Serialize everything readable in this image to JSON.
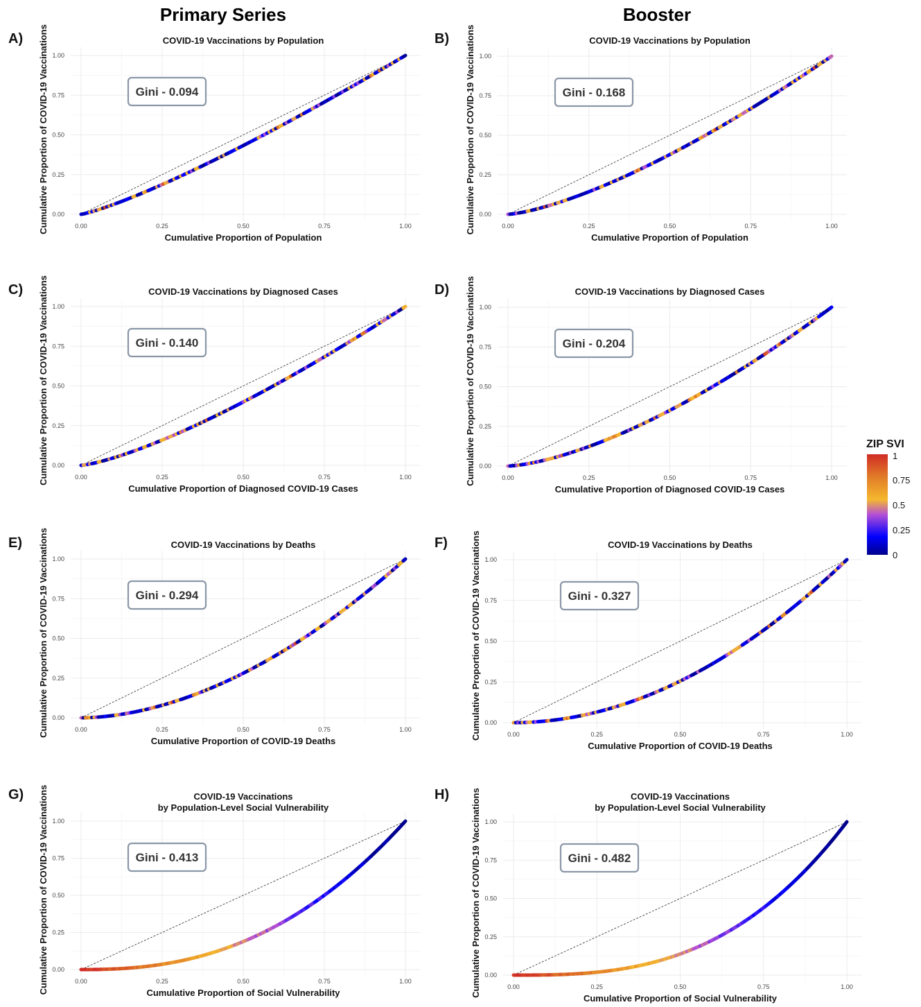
{
  "column_titles": [
    "Primary Series",
    "Booster"
  ],
  "legend": {
    "title": "ZIP SVI",
    "ticks": [
      "1",
      "0.75",
      "0.5",
      "0.25",
      "0"
    ],
    "colors": [
      "#00008b",
      "#0000ff",
      "#b44fd6",
      "#f5b82e",
      "#e07a28",
      "#d02c25"
    ]
  },
  "reference_line": "#444444",
  "chart_data": [
    {
      "panel": "A)",
      "type": "line",
      "title": "COVID-19 Vaccinations by Population",
      "xlabel": "Cumulative Proportion of Population",
      "ylabel": "Cumulative Proportion of COVID-19 Vaccinations",
      "gini_label": "Gini - 0.094",
      "gini": 0.094,
      "xlim": [
        0,
        1
      ],
      "ylim": [
        0,
        1
      ],
      "xticks": [
        "0.00",
        "0.25",
        "0.50",
        "0.75",
        "1.00"
      ],
      "yticks": [
        "0.00",
        "0.25",
        "0.50",
        "0.75",
        "1.00"
      ],
      "svi_trend": "mixed"
    },
    {
      "panel": "B)",
      "type": "line",
      "title": "COVID-19 Vaccinations by Population",
      "xlabel": "Cumulative Proportion of Population",
      "ylabel": "Cumulative Proportion of COVID-19 Vaccinations",
      "gini_label": "Gini - 0.168",
      "gini": 0.168,
      "xlim": [
        0,
        1
      ],
      "ylim": [
        0,
        1
      ],
      "xticks": [
        "0.00",
        "0.25",
        "0.50",
        "0.75",
        "1.00"
      ],
      "yticks": [
        "0.00",
        "0.25",
        "0.50",
        "0.75",
        "1.00"
      ],
      "svi_trend": "mixed"
    },
    {
      "panel": "C)",
      "type": "line",
      "title": "COVID-19 Vaccinations by Diagnosed Cases",
      "xlabel": "Cumulative Proportion of Diagnosed COVID-19 Cases",
      "ylabel": "Cumulative Proportion of COVID-19 Vaccinations",
      "gini_label": "Gini - 0.140",
      "gini": 0.14,
      "xlim": [
        0,
        1
      ],
      "ylim": [
        0,
        1
      ],
      "xticks": [
        "0.00",
        "0.25",
        "0.50",
        "0.75",
        "1.00"
      ],
      "yticks": [
        "0.00",
        "0.25",
        "0.50",
        "0.75",
        "1.00"
      ],
      "svi_trend": "mixed"
    },
    {
      "panel": "D)",
      "type": "line",
      "title": "COVID-19 Vaccinations by Diagnosed Cases",
      "xlabel": "Cumulative Proportion of Diagnosed COVID-19 Cases",
      "ylabel": "Cumulative Proportion of COVID-19 Vaccinations",
      "gini_label": "Gini - 0.204",
      "gini": 0.204,
      "xlim": [
        0,
        1
      ],
      "ylim": [
        0,
        1
      ],
      "xticks": [
        "0.00",
        "0.25",
        "0.50",
        "0.75",
        "1.00"
      ],
      "yticks": [
        "0.00",
        "0.25",
        "0.50",
        "0.75",
        "1.00"
      ],
      "svi_trend": "mixed"
    },
    {
      "panel": "E)",
      "type": "line",
      "title": "COVID-19 Vaccinations by Deaths",
      "xlabel": "Cumulative Proportion of COVID-19 Deaths",
      "ylabel": "Cumulative Proportion of COVID-19 Vaccinations",
      "gini_label": "Gini - 0.294",
      "gini": 0.294,
      "xlim": [
        0,
        1
      ],
      "ylim": [
        0,
        1
      ],
      "xticks": [
        "0.00",
        "0.25",
        "0.50",
        "0.75",
        "1.00"
      ],
      "yticks": [
        "0.00",
        "0.25",
        "0.50",
        "0.75",
        "1.00"
      ],
      "svi_trend": "mixed"
    },
    {
      "panel": "F)",
      "type": "line",
      "title": "COVID-19 Vaccinations by Deaths",
      "xlabel": "Cumulative Proportion of COVID-19 Deaths",
      "ylabel": "Cumulative Proportion of COVID-19 Vaccinations",
      "gini_label": "Gini - 0.327",
      "gini": 0.327,
      "xlim": [
        0,
        1
      ],
      "ylim": [
        0,
        1
      ],
      "xticks": [
        "0.00",
        "0.25",
        "0.50",
        "0.75",
        "1.00"
      ],
      "yticks": [
        "0.00",
        "0.25",
        "0.50",
        "0.75",
        "1.00"
      ],
      "svi_trend": "mixed"
    },
    {
      "panel": "G)",
      "type": "line",
      "title": "COVID-19 Vaccinations\nby Population-Level Social Vulnerability",
      "xlabel": "Cumulative Proportion of Social Vulnerability",
      "ylabel": "Cumulative Proportion of COVID-19 Vaccinations",
      "gini_label": "Gini - 0.413",
      "gini": 0.413,
      "xlim": [
        0,
        1
      ],
      "ylim": [
        0,
        1
      ],
      "xticks": [
        "0.00",
        "0.25",
        "0.50",
        "0.75",
        "1.00"
      ],
      "yticks": [
        "0.00",
        "0.25",
        "0.50",
        "0.75",
        "1.00"
      ],
      "svi_trend": "high-to-low"
    },
    {
      "panel": "H)",
      "type": "line",
      "title": "COVID-19 Vaccinations\nby Population-Level Social Vulnerability",
      "xlabel": "Cumulative Proportion of Social Vulnerability",
      "ylabel": "Cumulative Proportion of COVID-19 Vaccinations",
      "gini_label": "Gini - 0.482",
      "gini": 0.482,
      "xlim": [
        0,
        1
      ],
      "ylim": [
        0,
        1
      ],
      "xticks": [
        "0.00",
        "0.25",
        "0.50",
        "0.75",
        "1.00"
      ],
      "yticks": [
        "0.00",
        "0.25",
        "0.50",
        "0.75",
        "1.00"
      ],
      "svi_trend": "high-to-low"
    }
  ]
}
